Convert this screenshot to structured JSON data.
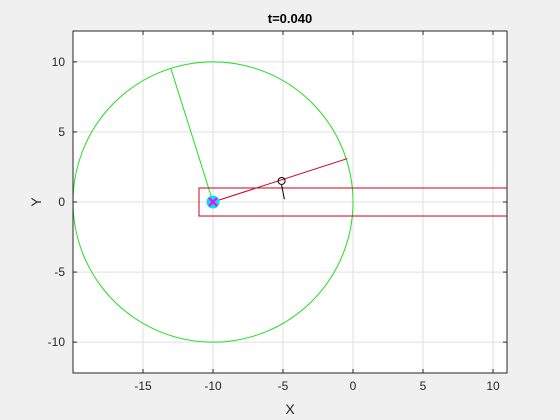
{
  "chart_data": {
    "type": "scatter",
    "title": "t=0.040",
    "xlabel": "X",
    "ylabel": "Y",
    "xlim": [
      -20,
      11
    ],
    "ylim": [
      -12.2,
      12.2
    ],
    "xticks": [
      -15,
      -10,
      -5,
      0,
      5,
      10
    ],
    "yticks": [
      -10,
      -5,
      0,
      5,
      10
    ],
    "xtick_labels": [
      "-15",
      "-10",
      "-5",
      "0",
      "5",
      "10"
    ],
    "ytick_labels": [
      "-10",
      "-5",
      "0",
      "5",
      "10"
    ],
    "grid": true,
    "circle": {
      "center": [
        -10,
        0
      ],
      "radius": 10,
      "color": "#22dd22"
    },
    "radius_line": {
      "points": [
        [
          -10,
          0
        ],
        [
          -13,
          9.5
        ]
      ],
      "color": "#22dd22"
    },
    "rectangle": {
      "x": [
        -11,
        11
      ],
      "y": [
        -1,
        1
      ],
      "color": "#cc0022"
    },
    "red_line": {
      "points": [
        [
          -10,
          0
        ],
        [
          -0.4,
          3.1
        ]
      ],
      "color": "#cc0022"
    },
    "center_marker": {
      "point": [
        -10,
        0
      ],
      "fill": "#00e5e5",
      "cross_color": "#ff00ff"
    },
    "probe": {
      "point": [
        -5.1,
        1.5
      ],
      "tail": [
        [
          -5.1,
          1.2
        ],
        [
          -4.9,
          0.2
        ]
      ],
      "color": "#000000"
    },
    "axes_color": "#262626",
    "grid_color": "#dfdfdf"
  }
}
